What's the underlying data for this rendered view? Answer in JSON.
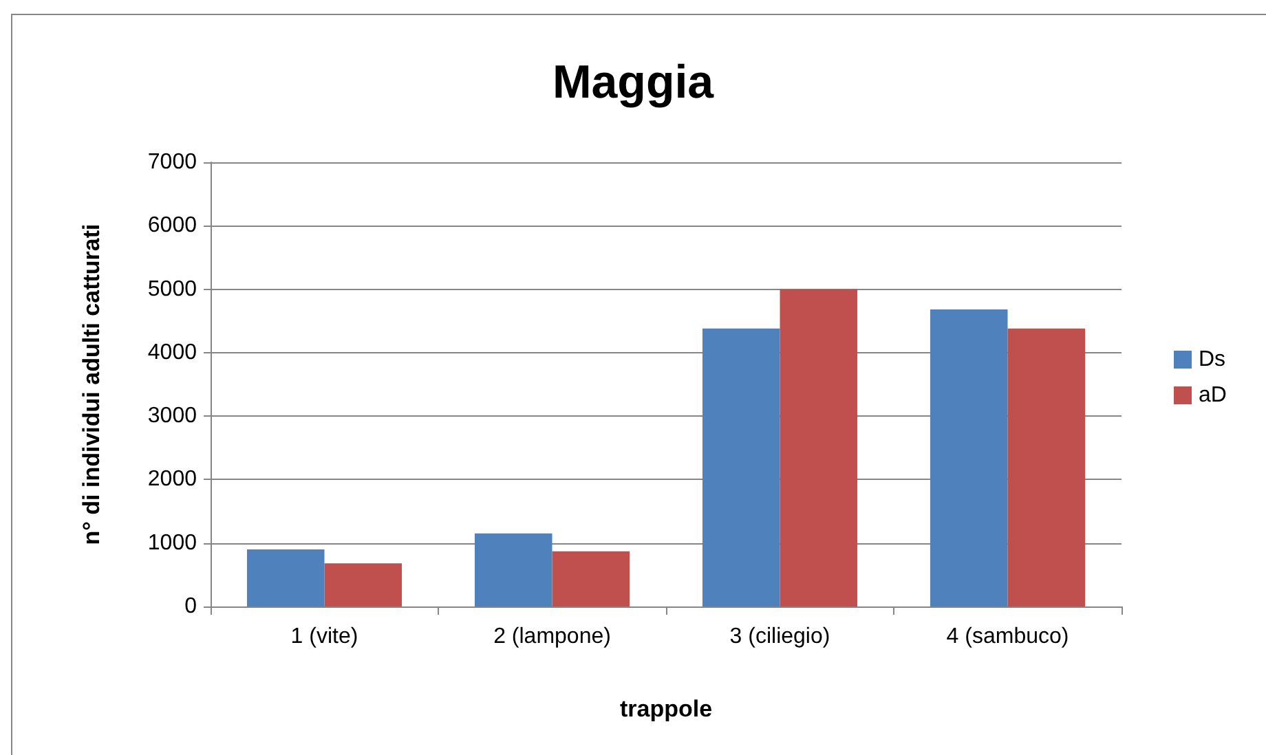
{
  "chart_data": {
    "type": "bar",
    "title": "Maggia",
    "xlabel": "trappole",
    "ylabel": "n° di individui adulti catturati",
    "categories": [
      "1 (vite)",
      "2 (lampone)",
      "3 (ciliegio)",
      "4 (sambuco)"
    ],
    "series": [
      {
        "name": "Ds",
        "color": "#4f81bd",
        "values": [
          900,
          1150,
          4380,
          4680
        ]
      },
      {
        "name": "aD",
        "color": "#c0504d",
        "values": [
          680,
          870,
          5000,
          4380
        ]
      }
    ],
    "ylim": [
      0,
      7000
    ],
    "yticks": [
      0,
      1000,
      2000,
      3000,
      4000,
      5000,
      6000,
      7000
    ],
    "grid": "y",
    "legend": "right"
  }
}
